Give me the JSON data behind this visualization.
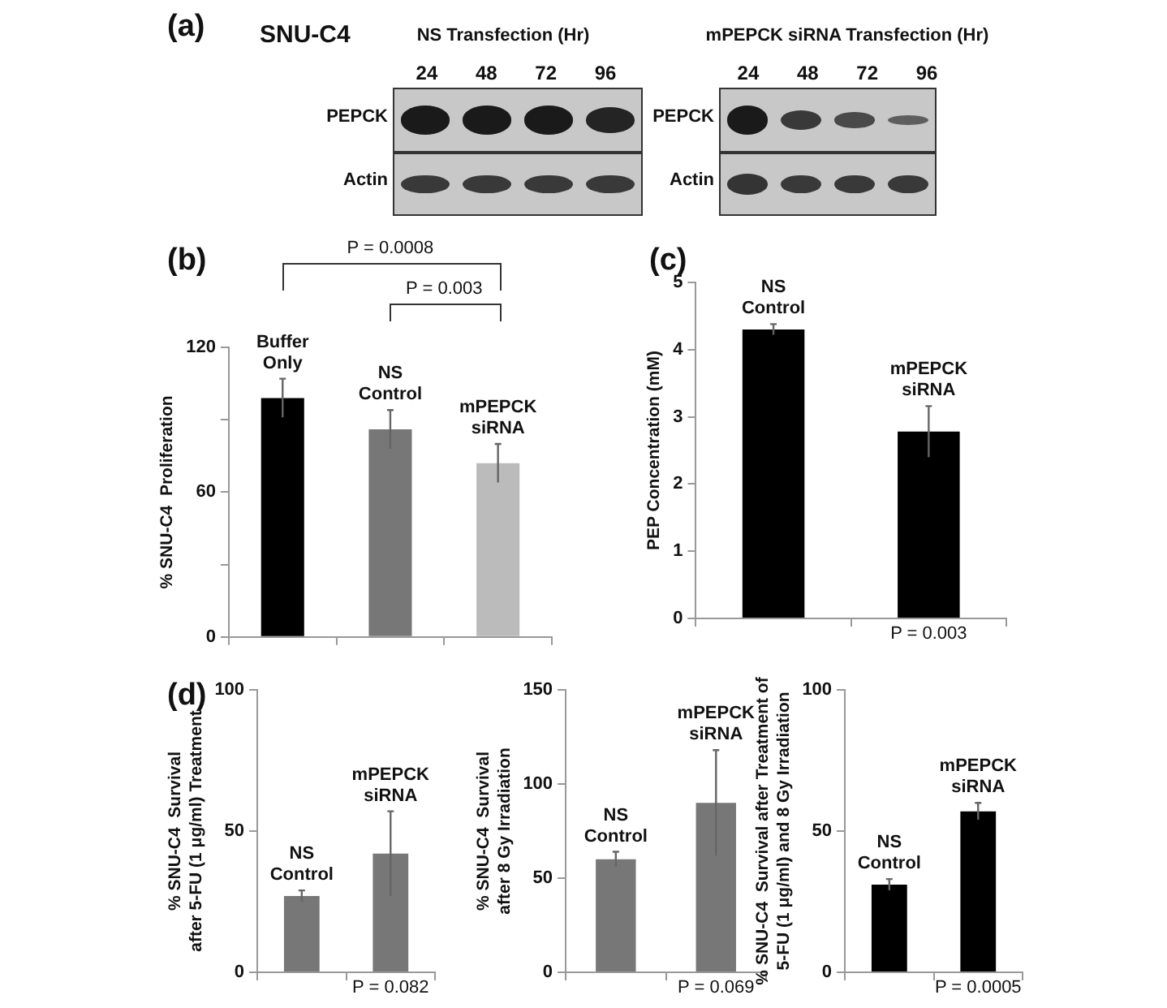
{
  "chart_data": [
    {
      "type": "other",
      "title": "(a)",
      "annotations": [
        "SNU-C4",
        "NS Transfection (Hr)",
        "24 48 72 96",
        "PEPCK",
        "Actin",
        "mPEPCK siRNA Transfection (Hr)",
        "24 48 72 96",
        "PEPCK",
        "Actin"
      ]
    },
    {
      "type": "bar",
      "title": "(b)",
      "categories": [
        "Buffer Only",
        "NS Control",
        "mPEPCK siRNA"
      ],
      "values": [
        99,
        86,
        72
      ],
      "errors": [
        8,
        8,
        8
      ],
      "colors": [
        "#000000",
        "#777777",
        "#bbbbbb"
      ],
      "ylabel": "% SNU-C4  Proliferation",
      "ylim": [
        0,
        120
      ],
      "yticks": [
        0,
        {
          "value": 30,
          "label": null
        },
        60,
        {
          "value": 90,
          "label": null
        },
        120
      ],
      "tick_labels": "y",
      "annotations": [
        "P = 0.0008",
        "P = 0.003"
      ]
    },
    {
      "type": "bar",
      "title": "(c)",
      "categories": [
        "NS Control",
        "mPEPCK siRNA"
      ],
      "values": [
        4.3,
        2.78
      ],
      "errors": [
        0.08,
        0.38
      ],
      "color": "#000000",
      "ylabel": "PEP Concentration (mM)",
      "ylim": [
        0,
        5
      ],
      "yticks": [
        0,
        1,
        2,
        3,
        4,
        5
      ],
      "tick_labels": "y",
      "annotations": [
        "P = 0.003"
      ]
    },
    {
      "type": "bar",
      "title": "(d)",
      "categories": [
        "NS Control",
        "mPEPCK siRNA"
      ],
      "values": [
        27,
        42
      ],
      "errors": [
        2,
        15
      ],
      "color": "#777777",
      "ylabel": "% SNU-C4  Survival\nafter 5-FU (1 μg/ml) Treatment",
      "ylim": [
        0,
        100
      ],
      "yticks": [
        0,
        50,
        100
      ],
      "tick_labels": "y",
      "annotations": [
        "P = 0.082"
      ]
    },
    {
      "type": "bar",
      "categories": [
        "NS Control",
        "mPEPCK siRNA"
      ],
      "values": [
        60,
        90
      ],
      "errors": [
        4,
        28
      ],
      "color": "#777777",
      "ylabel": "% SNU-C4  Survival\nafter 8 Gy Irradiation",
      "ylim": [
        0,
        150
      ],
      "yticks": [
        0,
        50,
        100,
        150
      ],
      "tick_labels": "y",
      "annotations": [
        "P = 0.069"
      ]
    },
    {
      "type": "bar",
      "categories": [
        "NS Control",
        "mPEPCK siRNA"
      ],
      "values": [
        31,
        57
      ],
      "errors": [
        2,
        3
      ],
      "color": "#000000",
      "ylabel": "% SNU-C4  Survival after Treatment of\n5-FU (1 μg/ml) and 8 Gy Irradiation",
      "ylim": [
        0,
        100
      ],
      "yticks": [
        0,
        50,
        100
      ],
      "tick_labels": "y",
      "annotations": [
        "P = 0.0005"
      ]
    }
  ]
}
